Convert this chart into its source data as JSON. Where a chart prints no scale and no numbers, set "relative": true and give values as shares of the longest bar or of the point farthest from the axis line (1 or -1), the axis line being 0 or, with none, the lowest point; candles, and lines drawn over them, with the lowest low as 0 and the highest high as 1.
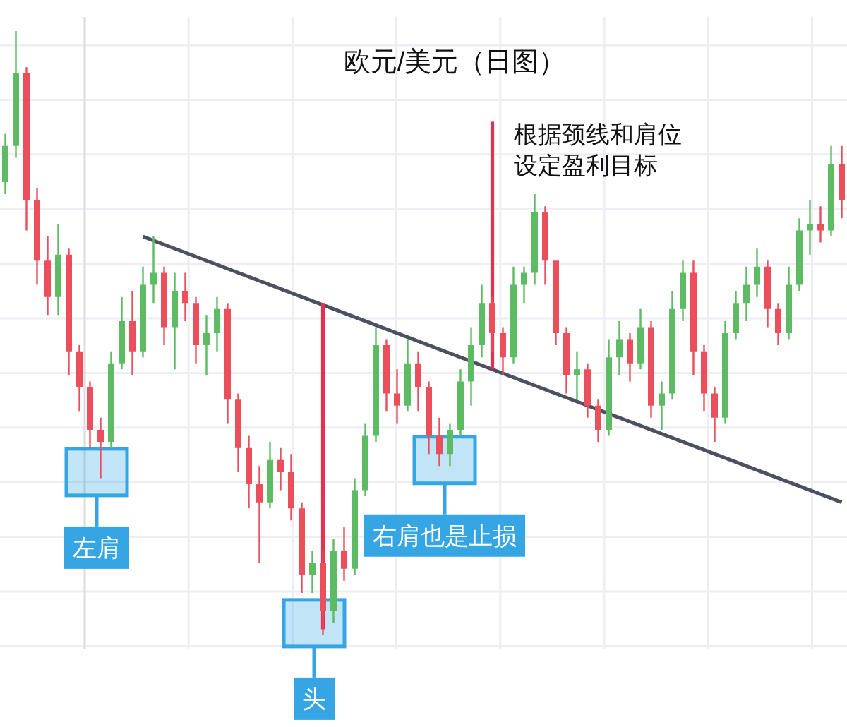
{
  "chart_data": {
    "type": "candlestick",
    "title": "欧元/美元（日图）",
    "relative": true,
    "grid": true,
    "categories": [
      null,
      null,
      null,
      null,
      null,
      null,
      null,
      null,
      null,
      null,
      null,
      null,
      null,
      null,
      null,
      null,
      null,
      null,
      null,
      null,
      null,
      null,
      null,
      null,
      null,
      null,
      null,
      null,
      null,
      null,
      null,
      null,
      null,
      null,
      null,
      null,
      null,
      null,
      null,
      null,
      null,
      null,
      null,
      null,
      null,
      null,
      null,
      null,
      null,
      null,
      null,
      null,
      null,
      null,
      null,
      null,
      null,
      null,
      null,
      null,
      null,
      null,
      null,
      null,
      null,
      null,
      null,
      null,
      null,
      null,
      null,
      null,
      null,
      null,
      null,
      null,
      null,
      null,
      null,
      null
    ],
    "ohlc": [
      [
        0.75,
        0.83,
        0.73,
        0.81
      ],
      [
        0.81,
        1.0,
        0.79,
        0.93
      ],
      [
        0.93,
        0.94,
        0.67,
        0.72
      ],
      [
        0.72,
        0.74,
        0.58,
        0.62
      ],
      [
        0.62,
        0.66,
        0.53,
        0.56
      ],
      [
        0.56,
        0.68,
        0.53,
        0.63
      ],
      [
        0.63,
        0.64,
        0.43,
        0.47
      ],
      [
        0.47,
        0.48,
        0.37,
        0.41
      ],
      [
        0.41,
        0.42,
        0.31,
        0.34
      ],
      [
        0.34,
        0.36,
        0.26,
        0.32
      ],
      [
        0.32,
        0.47,
        0.31,
        0.45
      ],
      [
        0.45,
        0.56,
        0.44,
        0.52
      ],
      [
        0.52,
        0.57,
        0.43,
        0.47
      ],
      [
        0.47,
        0.61,
        0.46,
        0.58
      ],
      [
        0.58,
        0.66,
        0.55,
        0.6
      ],
      [
        0.6,
        0.61,
        0.48,
        0.51
      ],
      [
        0.51,
        0.6,
        0.44,
        0.57
      ],
      [
        0.57,
        0.6,
        0.52,
        0.55
      ],
      [
        0.55,
        0.56,
        0.45,
        0.48
      ],
      [
        0.48,
        0.53,
        0.43,
        0.5
      ],
      [
        0.5,
        0.56,
        0.47,
        0.54
      ],
      [
        0.54,
        0.55,
        0.35,
        0.39
      ],
      [
        0.39,
        0.4,
        0.27,
        0.31
      ],
      [
        0.31,
        0.33,
        0.21,
        0.25
      ],
      [
        0.25,
        0.28,
        0.12,
        0.22
      ],
      [
        0.22,
        0.32,
        0.21,
        0.29
      ],
      [
        0.29,
        0.31,
        0.24,
        0.27
      ],
      [
        0.27,
        0.3,
        0.19,
        0.21
      ],
      [
        0.21,
        0.22,
        0.07,
        0.1
      ],
      [
        0.1,
        0.14,
        0.07,
        0.12
      ],
      [
        0.12,
        0.14,
        0.0,
        0.04
      ],
      [
        0.04,
        0.16,
        0.02,
        0.14
      ],
      [
        0.14,
        0.18,
        0.09,
        0.11
      ],
      [
        0.11,
        0.26,
        0.1,
        0.24
      ],
      [
        0.24,
        0.35,
        0.23,
        0.33
      ],
      [
        0.33,
        0.51,
        0.32,
        0.48
      ],
      [
        0.48,
        0.49,
        0.37,
        0.4
      ],
      [
        0.4,
        0.44,
        0.35,
        0.38
      ],
      [
        0.38,
        0.49,
        0.37,
        0.45
      ],
      [
        0.45,
        0.47,
        0.37,
        0.41
      ],
      [
        0.41,
        0.42,
        0.3,
        0.33
      ],
      [
        0.33,
        0.36,
        0.28,
        0.3
      ],
      [
        0.3,
        0.35,
        0.28,
        0.34
      ],
      [
        0.34,
        0.44,
        0.33,
        0.42
      ],
      [
        0.42,
        0.51,
        0.38,
        0.48
      ],
      [
        0.48,
        0.58,
        0.46,
        0.55
      ],
      [
        0.55,
        0.56,
        0.47,
        0.5
      ],
      [
        0.5,
        0.51,
        0.43,
        0.46
      ],
      [
        0.46,
        0.61,
        0.45,
        0.58
      ],
      [
        0.58,
        0.61,
        0.55,
        0.6
      ],
      [
        0.6,
        0.73,
        0.58,
        0.7
      ],
      [
        0.7,
        0.71,
        0.58,
        0.62
      ],
      [
        0.62,
        0.62,
        0.48,
        0.5
      ],
      [
        0.5,
        0.51,
        0.4,
        0.43
      ],
      [
        0.43,
        0.47,
        0.39,
        0.44
      ],
      [
        0.44,
        0.45,
        0.36,
        0.38
      ],
      [
        0.38,
        0.39,
        0.32,
        0.34
      ],
      [
        0.34,
        0.49,
        0.33,
        0.46
      ],
      [
        0.46,
        0.52,
        0.43,
        0.49
      ],
      [
        0.49,
        0.5,
        0.42,
        0.45
      ],
      [
        0.45,
        0.54,
        0.44,
        0.51
      ],
      [
        0.51,
        0.52,
        0.36,
        0.38
      ],
      [
        0.38,
        0.42,
        0.34,
        0.4
      ],
      [
        0.4,
        0.57,
        0.39,
        0.54
      ],
      [
        0.54,
        0.62,
        0.52,
        0.6
      ],
      [
        0.6,
        0.62,
        0.43,
        0.47
      ],
      [
        0.47,
        0.48,
        0.37,
        0.4
      ],
      [
        0.4,
        0.41,
        0.32,
        0.36
      ],
      [
        0.36,
        0.52,
        0.35,
        0.5
      ],
      [
        0.5,
        0.57,
        0.49,
        0.55
      ],
      [
        0.55,
        0.61,
        0.52,
        0.58
      ],
      [
        0.58,
        0.64,
        0.56,
        0.61
      ],
      [
        0.61,
        0.62,
        0.51,
        0.54
      ],
      [
        0.54,
        0.55,
        0.48,
        0.5
      ],
      [
        0.5,
        0.61,
        0.49,
        0.58
      ],
      [
        0.58,
        0.69,
        0.57,
        0.67
      ],
      [
        0.67,
        0.72,
        0.63,
        0.68
      ],
      [
        0.68,
        0.71,
        0.65,
        0.67
      ],
      [
        0.67,
        0.81,
        0.66,
        0.78
      ],
      [
        0.78,
        0.81,
        0.69,
        0.72
      ]
    ],
    "series": [
      {
        "type": "line",
        "color": "#4b5160",
        "values": [
          null,
          null,
          null,
          null,
          null,
          null,
          null,
          null,
          null,
          null,
          null,
          null,
          null,
          0.66,
          null,
          null,
          null,
          null,
          null,
          null,
          null,
          null,
          null,
          null,
          null,
          null,
          null,
          null,
          null,
          null,
          null,
          null,
          null,
          null,
          null,
          null,
          null,
          null,
          null,
          null,
          null,
          null,
          null,
          null,
          null,
          null,
          null,
          null,
          null,
          null,
          null,
          null,
          null,
          null,
          null,
          null,
          null,
          null,
          null,
          null,
          null,
          null,
          null,
          null,
          null,
          null,
          null,
          null,
          null,
          null,
          null,
          null,
          null,
          null,
          null,
          null,
          null,
          null,
          null,
          0.22
        ]
      },
      {
        "type": "bar",
        "color": "#e6304e",
        "values": [
          null,
          null,
          null,
          null,
          null,
          null,
          null,
          null,
          null,
          null,
          null,
          null,
          null,
          null,
          null,
          null,
          null,
          null,
          null,
          null,
          null,
          null,
          null,
          null,
          null,
          null,
          null,
          null,
          null,
          null,
          0.54,
          null,
          null,
          null,
          null,
          null,
          null,
          null,
          null,
          null,
          null,
          null,
          null,
          null,
          null,
          null,
          null,
          null,
          null,
          null,
          null,
          null,
          null,
          null,
          null,
          null,
          null,
          null,
          null,
          null,
          null,
          null,
          null,
          null,
          null,
          null,
          null,
          null,
          null,
          null,
          null,
          null,
          null,
          null,
          null,
          null,
          null,
          null,
          null,
          null
        ],
        "base": [
          null,
          null,
          null,
          null,
          null,
          null,
          null,
          null,
          null,
          null,
          null,
          null,
          null,
          null,
          null,
          null,
          null,
          null,
          null,
          null,
          null,
          null,
          null,
          null,
          null,
          null,
          null,
          null,
          null,
          null,
          0.01,
          null,
          null,
          null,
          null,
          null,
          null,
          null,
          null,
          null,
          null,
          null,
          null,
          null,
          null,
          null,
          null,
          null,
          null,
          null,
          null,
          null,
          null,
          null,
          null,
          null,
          null,
          null,
          null,
          null,
          null,
          null,
          null,
          null,
          null,
          null,
          null,
          null,
          null,
          null,
          null,
          null,
          null,
          null,
          null,
          null,
          null,
          null,
          null,
          null
        ]
      },
      {
        "type": "bar",
        "color": "#e6304e",
        "values": [
          null,
          null,
          null,
          null,
          null,
          null,
          null,
          null,
          null,
          null,
          null,
          null,
          null,
          null,
          null,
          null,
          null,
          null,
          null,
          null,
          null,
          null,
          null,
          null,
          null,
          null,
          null,
          null,
          null,
          null,
          null,
          null,
          null,
          null,
          null,
          null,
          null,
          null,
          null,
          null,
          null,
          null,
          null,
          null,
          null,
          null,
          0.41,
          null,
          null,
          null,
          null,
          null,
          null,
          null,
          null,
          null,
          null,
          null,
          null,
          null,
          null,
          null,
          null,
          null,
          null,
          null,
          null,
          null,
          null,
          null,
          null,
          null,
          null,
          null,
          null,
          null,
          null,
          null,
          null,
          null
        ],
        "base": [
          null,
          null,
          null,
          null,
          null,
          null,
          null,
          null,
          null,
          null,
          null,
          null,
          null,
          null,
          null,
          null,
          null,
          null,
          null,
          null,
          null,
          null,
          null,
          null,
          null,
          null,
          null,
          null,
          null,
          null,
          null,
          null,
          null,
          null,
          null,
          null,
          null,
          null,
          null,
          null,
          null,
          null,
          null,
          null,
          null,
          null,
          0.44,
          null,
          null,
          null,
          null,
          null,
          null,
          null,
          null,
          null,
          null,
          null,
          null,
          null,
          null,
          null,
          null,
          null,
          null,
          null,
          null,
          null,
          null,
          null,
          null,
          null,
          null,
          null,
          null,
          null,
          null,
          null,
          null,
          null
        ]
      }
    ],
    "annotations": [
      {
        "text": "左肩",
        "y": 0.27
      },
      {
        "text": "头",
        "y": 0.02
      },
      {
        "text": "右肩也是止损",
        "y": 0.29
      },
      "根据颈线和肩位设定盈利目标"
    ]
  }
}
